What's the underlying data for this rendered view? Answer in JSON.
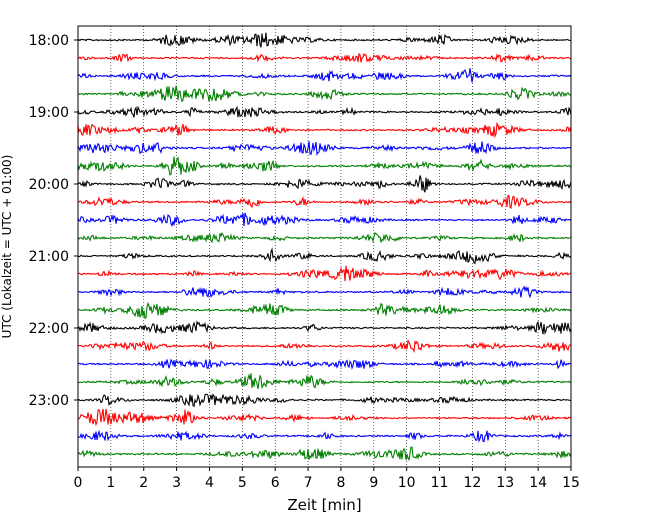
{
  "chart_data": {
    "type": "line",
    "subtype": "helicorder",
    "title": "",
    "xlabel": "Zeit  [min]",
    "ylabel": "UTC (Lokalzeit = UTC + 01:00)",
    "xlim": [
      0,
      15
    ],
    "x_ticks": [
      0,
      1,
      2,
      3,
      4,
      5,
      6,
      7,
      8,
      9,
      10,
      11,
      12,
      13,
      14,
      15
    ],
    "y_tick_labels": [
      "18:00",
      "19:00",
      "20:00",
      "21:00",
      "22:00",
      "23:00"
    ],
    "trace_interval_minutes": 15,
    "trace_start": "18:00",
    "trace_count": 24,
    "color_cycle": [
      "#000000",
      "#ff0000",
      "#0000ff",
      "#008000"
    ],
    "grid": "vertical dotted lines at each minute",
    "legend": "none"
  }
}
